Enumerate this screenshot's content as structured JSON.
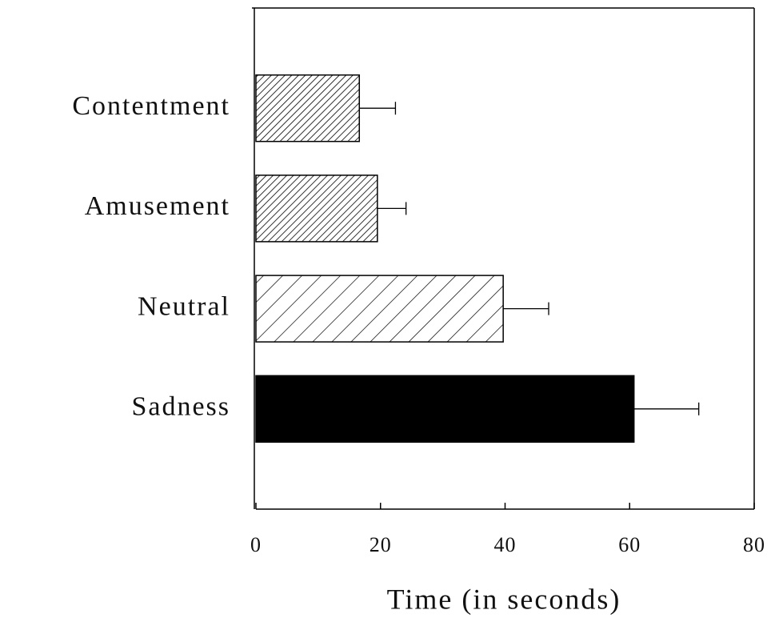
{
  "chart_data": {
    "type": "barh",
    "categories": [
      "Contentment",
      "Amusement",
      "Neutral",
      "Sadness"
    ],
    "values": [
      16.6,
      19.5,
      39.7,
      60.7
    ],
    "errors": [
      5.8,
      4.6,
      7.3,
      10.4
    ],
    "patterns": [
      "hatch-dense",
      "hatch-dense",
      "hatch-sparse",
      "solid"
    ],
    "color": "#000000",
    "x_label": "Time (in seconds)",
    "xlim": [
      0,
      80
    ],
    "xticks": [
      0,
      20,
      40,
      60,
      80
    ]
  }
}
